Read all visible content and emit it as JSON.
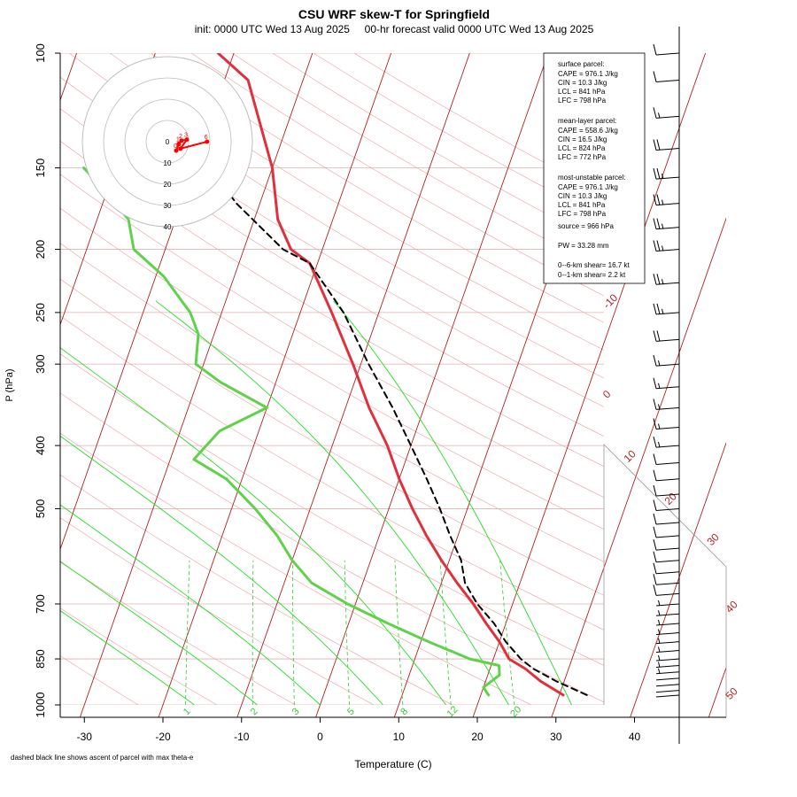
{
  "chart_data": {
    "type": "line",
    "title": "CSU WRF skew-T for Springfield",
    "subtitle": "init: 0000 UTC Wed 13 Aug 2025     00-hr forecast valid 0000 UTC Wed 13 Aug 2025",
    "xlabel": "Temperature (C)",
    "ylabel": "P (hPa)",
    "xlim": [
      -33,
      43
    ],
    "ylim": [
      1050,
      100
    ],
    "log_pressure_axis": true,
    "x_ticks": [
      "-30",
      "-20",
      "-10",
      "0",
      "10",
      "20",
      "30",
      "40"
    ],
    "x_tick_values": [
      -30,
      -20,
      -10,
      0,
      10,
      20,
      30,
      40
    ],
    "y_ticks": [
      "100",
      "150",
      "200",
      "250",
      "300",
      "400",
      "500",
      "700",
      "850",
      "1000"
    ],
    "y_tick_values": [
      100,
      150,
      200,
      250,
      300,
      400,
      500,
      700,
      850,
      1000
    ],
    "footnote": "dashed black line shows ascent of parcel with max theta-e",
    "series": [
      {
        "role": "temperature",
        "color": "#e0303c",
        "points": [
          [
            30.5,
            966
          ],
          [
            27,
            920
          ],
          [
            24.5,
            880
          ],
          [
            22,
            850
          ],
          [
            20,
            800
          ],
          [
            17.5,
            750
          ],
          [
            15,
            700
          ],
          [
            12,
            650
          ],
          [
            9,
            600
          ],
          [
            6,
            550
          ],
          [
            3,
            500
          ],
          [
            0,
            450
          ],
          [
            -3,
            400
          ],
          [
            -7,
            350
          ],
          [
            -11,
            300
          ],
          [
            -16,
            250
          ],
          [
            -21,
            210
          ],
          [
            -24,
            200
          ],
          [
            -27,
            180
          ],
          [
            -30,
            150
          ],
          [
            -37,
            110
          ],
          [
            -42,
            100
          ]
        ]
      },
      {
        "role": "dewpoint",
        "color": "#5fd24a",
        "points": [
          [
            21,
            966
          ],
          [
            20,
            940
          ],
          [
            21.5,
            900
          ],
          [
            21,
            870
          ],
          [
            17,
            850
          ],
          [
            11,
            800
          ],
          [
            5,
            750
          ],
          [
            -1,
            700
          ],
          [
            -6.5,
            650
          ],
          [
            -10,
            600
          ],
          [
            -13,
            550
          ],
          [
            -17,
            500
          ],
          [
            -22,
            450
          ],
          [
            -27,
            420
          ],
          [
            -25,
            380
          ],
          [
            -20,
            350
          ],
          [
            -27,
            320
          ],
          [
            -31,
            300
          ],
          [
            -32,
            270
          ],
          [
            -34,
            250
          ],
          [
            -39,
            220
          ],
          [
            -44,
            200
          ],
          [
            -46,
            180
          ],
          [
            -51,
            160
          ],
          [
            -54,
            150
          ]
        ]
      },
      {
        "role": "parcel",
        "color": "#000000",
        "points": [
          [
            33.5,
            966
          ],
          [
            29,
            920
          ],
          [
            25.5,
            880
          ],
          [
            23.5,
            850
          ],
          [
            20.8,
            800
          ],
          [
            18.5,
            750
          ],
          [
            15.5,
            700
          ],
          [
            13,
            650
          ],
          [
            11.5,
            600
          ],
          [
            9,
            550
          ],
          [
            6.5,
            500
          ],
          [
            3.5,
            450
          ],
          [
            0,
            400
          ],
          [
            -4,
            350
          ],
          [
            -9,
            300
          ],
          [
            -14.5,
            250
          ],
          [
            -21,
            210
          ],
          [
            -25,
            200
          ],
          [
            -33,
            170
          ],
          [
            -38,
            150
          ]
        ]
      }
    ],
    "isotherm_labels": [
      "-10",
      "0",
      "10",
      "20",
      "30",
      "40",
      "50"
    ],
    "isotherm_label_values": [
      -10,
      0,
      10,
      20,
      30,
      40,
      50
    ],
    "mixing_ratio_labels": [
      "1",
      "2",
      "3",
      "5",
      "8",
      "12",
      "20"
    ],
    "mixing_ratio_values": [
      1,
      2,
      3,
      5,
      8,
      12,
      20
    ],
    "hodograph": {
      "ring_labels": [
        "0",
        "10",
        "20",
        "30",
        "40"
      ],
      "points": [
        {
          "label": "0",
          "u": -2.5,
          "v": -4.2
        },
        {
          "label": "1",
          "u": -1.3,
          "v": -1.0
        },
        {
          "label": "2",
          "u": 0.0,
          "v": 0.5
        },
        {
          "label": "3",
          "u": 2.5,
          "v": 1.0
        },
        {
          "label": "5",
          "u": -0.5,
          "v": -3.3
        },
        {
          "label": "6",
          "u": 12.0,
          "v": 0.0
        }
      ],
      "color": "#ff0000"
    },
    "wind_barbs": [
      {
        "p": 966,
        "spd": 2
      },
      {
        "p": 950,
        "spd": 3
      },
      {
        "p": 930,
        "spd": 3
      },
      {
        "p": 910,
        "spd": 4
      },
      {
        "p": 890,
        "spd": 5
      },
      {
        "p": 870,
        "spd": 6
      },
      {
        "p": 850,
        "spd": 6
      },
      {
        "p": 825,
        "spd": 5
      },
      {
        "p": 800,
        "spd": 5
      },
      {
        "p": 775,
        "spd": 5
      },
      {
        "p": 750,
        "spd": 5
      },
      {
        "p": 725,
        "spd": 5
      },
      {
        "p": 700,
        "spd": 5
      },
      {
        "p": 675,
        "spd": 10
      },
      {
        "p": 650,
        "spd": 10
      },
      {
        "p": 625,
        "spd": 10
      },
      {
        "p": 600,
        "spd": 10
      },
      {
        "p": 575,
        "spd": 10
      },
      {
        "p": 550,
        "spd": 10
      },
      {
        "p": 525,
        "spd": 10
      },
      {
        "p": 500,
        "spd": 10
      },
      {
        "p": 475,
        "spd": 10
      },
      {
        "p": 450,
        "spd": 10
      },
      {
        "p": 425,
        "spd": 10
      },
      {
        "p": 400,
        "spd": 15
      },
      {
        "p": 375,
        "spd": 15
      },
      {
        "p": 350,
        "spd": 15
      },
      {
        "p": 325,
        "spd": 15
      },
      {
        "p": 300,
        "spd": 15
      },
      {
        "p": 275,
        "spd": 20
      },
      {
        "p": 250,
        "spd": 25
      },
      {
        "p": 225,
        "spd": 25
      },
      {
        "p": 200,
        "spd": 25
      },
      {
        "p": 185,
        "spd": 25
      },
      {
        "p": 170,
        "spd": 25
      },
      {
        "p": 155,
        "spd": 25
      },
      {
        "p": 140,
        "spd": 20
      },
      {
        "p": 125,
        "spd": 15
      },
      {
        "p": 110,
        "spd": 10
      },
      {
        "p": 100,
        "spd": 10
      }
    ]
  },
  "info_box": {
    "surface_title": "surface parcel:",
    "surface_cape": "CAPE = 976.1 J/kg",
    "surface_cin": "CIN = 10.3 J/kg",
    "surface_lcl": "LCL = 841 hPa",
    "surface_lfc": "LFC = 798 hPa",
    "ml_title": "mean-layer parcel:",
    "ml_cape": "CAPE = 558.6 J/kg",
    "ml_cin": "CIN = 16.5 J/kg",
    "ml_lcl": "LCL = 824 hPa",
    "ml_lfc": "LFC = 772 hPa",
    "mu_title": "most-unstable parcel:",
    "mu_cape": "CAPE = 976.1 J/kg",
    "mu_cin": "CIN = 10.3 J/kg",
    "mu_lcl": "LCL = 841 hPa",
    "mu_lfc": "LFC = 798 hPa",
    "mu_source": "source = 966 hPa",
    "pw": "PW =  33.28 mm",
    "shear_06": "0--6-km shear= 16.7 kt",
    "shear_01": "0--1-km shear= 2.2 kt"
  },
  "colors": {
    "isotherm": "#b22222",
    "mixing_ratio": "#32cd32",
    "dry_adiabat": "#e8a0a0",
    "isobar": "#e0b0b0"
  }
}
